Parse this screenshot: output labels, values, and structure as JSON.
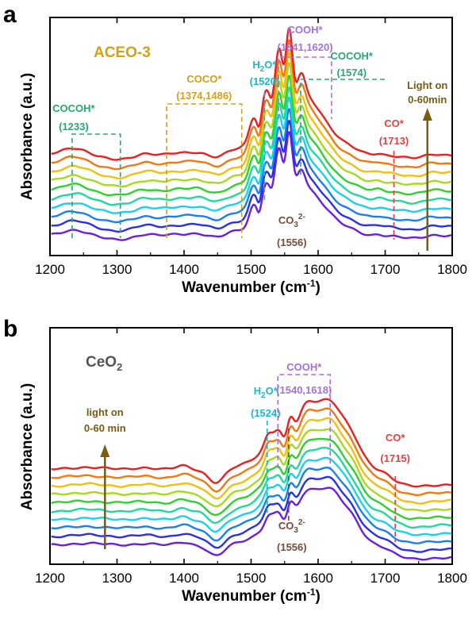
{
  "chart_data": [
    {
      "type": "line",
      "panel_label": "a",
      "title": "ACEO-3",
      "title_color": "#d4a017",
      "xlabel": "Wavenumber (cm",
      "xlabel_sup": "-1",
      "xlabel_tail": ")",
      "ylabel": "Absorbance (a.u.)",
      "xlim": [
        1200,
        1800
      ],
      "xticks": [
        "1200",
        "1300",
        "1400",
        "1500",
        "1600",
        "1700",
        "1800"
      ],
      "series_count": 10,
      "series_colors": [
        "#6a1fe0",
        "#2a2fe8",
        "#1a7ff0",
        "#1ad0f0",
        "#20d8a0",
        "#30d030",
        "#a8d820",
        "#f0c010",
        "#f07a10",
        "#e82020"
      ],
      "light": {
        "line1": "Light on",
        "line2": "0-60min",
        "x": 1763,
        "color": "#7a5c10"
      },
      "annotations": [
        {
          "id": "cocoh-left",
          "label": "COCOH*",
          "value": "(1233)",
          "color": "#2aa872",
          "x": 1233
        },
        {
          "id": "coco",
          "label": "COCO*",
          "value": "(1374,1486)",
          "color": "#d4a017",
          "x1": 1374,
          "x2": 1486
        },
        {
          "id": "h2o",
          "label": "H",
          "label_sub": "2",
          "label_tail": "O*",
          "value": "(1520)",
          "color": "#1ab8cc",
          "x": 1520
        },
        {
          "id": "cooh",
          "label": "COOH*",
          "value": "(1541,1620)",
          "color": "#a86ee0",
          "x1": 1541,
          "x2": 1620
        },
        {
          "id": "cocoh-right",
          "label": "COCOH*",
          "value": "(1574)",
          "color": "#2aa872",
          "x": 1574
        },
        {
          "id": "co",
          "label": "CO*",
          "value": "(1713)",
          "color": "#e84040",
          "x": 1713
        },
        {
          "id": "co3",
          "label": "CO",
          "label_sub": "3",
          "label_sup": "2-",
          "value": "(1556)",
          "color": "#7a4a3a",
          "x": 1556
        }
      ]
    },
    {
      "type": "line",
      "panel_label": "b",
      "title": "CeO",
      "title_sub": "2",
      "title_color": "#555555",
      "xlabel": "Wavenumber (cm",
      "xlabel_sup": "-1",
      "xlabel_tail": ")",
      "ylabel": "Absorbance (a.u.)",
      "xlim": [
        1200,
        1800
      ],
      "xticks": [
        "1200",
        "1300",
        "1400",
        "1500",
        "1600",
        "1700",
        "1800"
      ],
      "series_count": 10,
      "series_colors": [
        "#6a1fe0",
        "#2a2fe8",
        "#1a7ff0",
        "#1ad0f0",
        "#20d8a0",
        "#30d030",
        "#a8d820",
        "#f0c010",
        "#f07a10",
        "#e82020"
      ],
      "light": {
        "line1": "light on",
        "line2": "0-60 min",
        "x": 1282,
        "color": "#7a5c10"
      },
      "annotations": [
        {
          "id": "h2o",
          "label": "H",
          "label_sub": "2",
          "label_tail": "O*",
          "value": "(1524)",
          "color": "#1ab8cc",
          "x": 1524
        },
        {
          "id": "cooh",
          "label": "COOH*",
          "value": "(1540,1618)",
          "color": "#a86ee0",
          "x1": 1540,
          "x2": 1618
        },
        {
          "id": "co",
          "label": "CO*",
          "value": "(1715)",
          "color": "#e84040",
          "x": 1715
        },
        {
          "id": "co3",
          "label": "CO",
          "label_sub": "3",
          "label_sup": "2-",
          "value": "(1556)",
          "color": "#7a4a3a",
          "x": 1556
        }
      ]
    }
  ]
}
